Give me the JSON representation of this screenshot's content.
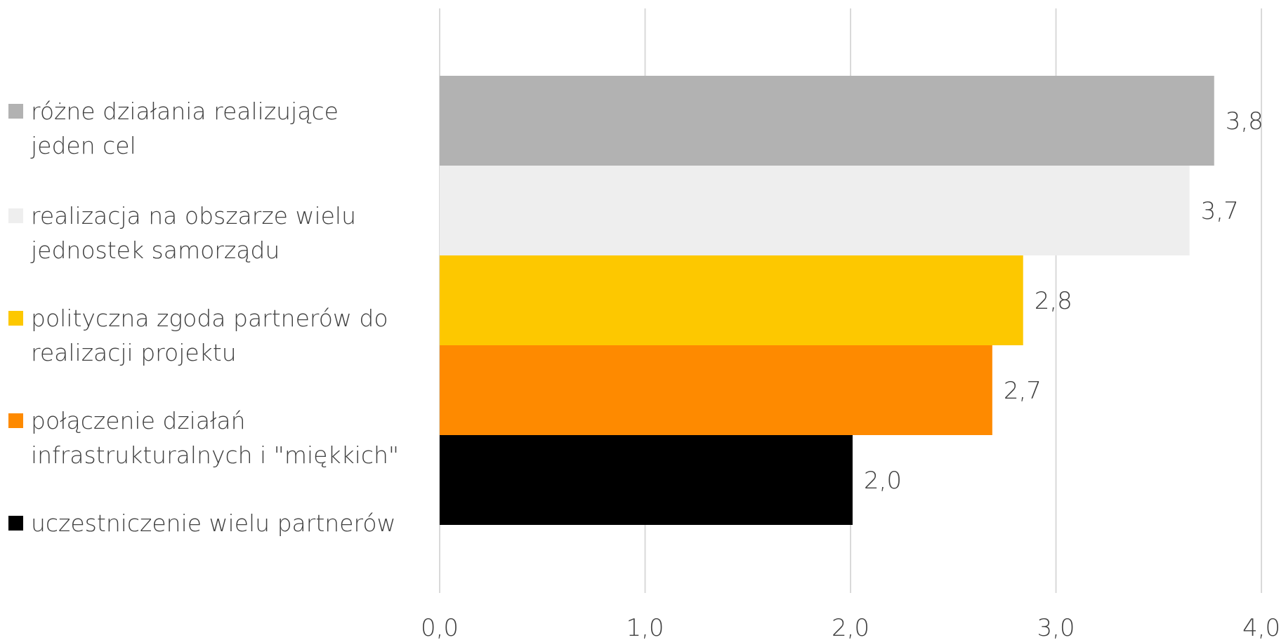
{
  "chart_data": {
    "type": "bar",
    "orientation": "horizontal",
    "categories": [
      "różne działania realizujące jeden cel",
      "realizacja na obszarze wielu jednostek samorządu",
      "polityczna zgoda partnerów do realizacji projektu",
      "połączenie działań infrastrukturalnych i \"miękkich\"",
      "uczestniczenie wielu partnerów"
    ],
    "values": [
      3.77,
      3.65,
      2.84,
      2.69,
      2.01
    ],
    "value_labels": [
      "3,8",
      "3,7",
      "2,8",
      "2,7",
      "2,0"
    ],
    "colors": [
      "#b2b2b2",
      "#eeeeee",
      "#fdc800",
      "#fe8a00",
      "#000000"
    ],
    "xlim": [
      0,
      4
    ],
    "xticks": [
      0,
      1,
      2,
      3,
      4
    ],
    "xtick_labels": [
      "0,0",
      "1,0",
      "2,0",
      "3,0",
      "4,0"
    ],
    "grid": true,
    "legend_position": "left",
    "title": "",
    "xlabel": "",
    "ylabel": ""
  },
  "legend": {
    "items": [
      {
        "lines": [
          "różne działania realizujące",
          "jeden cel"
        ]
      },
      {
        "lines": [
          "realizacja na obszarze wielu",
          "jednostek samorządu"
        ]
      },
      {
        "lines": [
          "polityczna zgoda partnerów do",
          "realizacji projektu"
        ]
      },
      {
        "lines": [
          "połączenie działań",
          "infrastrukturalnych i \"miękkich\""
        ]
      },
      {
        "lines": [
          "uczestniczenie wielu partnerów"
        ]
      }
    ]
  }
}
